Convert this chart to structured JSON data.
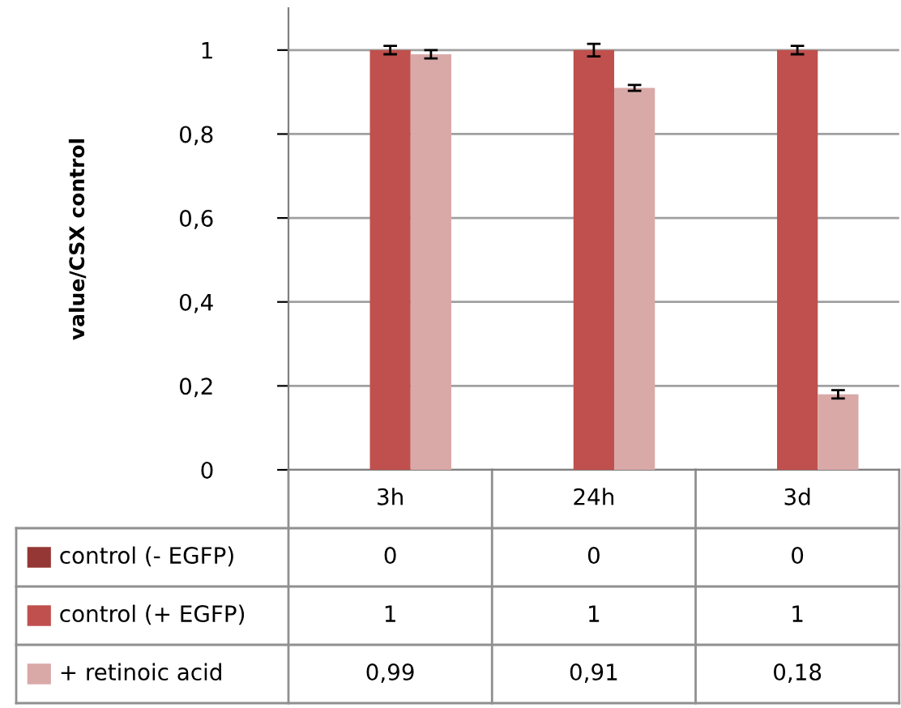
{
  "chart_data": {
    "type": "bar",
    "ylabel": "value/CSX control",
    "categories": [
      "3h",
      "24h",
      "3d"
    ],
    "series": [
      {
        "name": "control (- EGFP)",
        "color": "#953735",
        "values": [
          0,
          0,
          0
        ],
        "value_labels": [
          "0",
          "0",
          "0"
        ]
      },
      {
        "name": "control (+ EGFP)",
        "color": "#c0504d",
        "values": [
          1,
          1,
          1
        ],
        "errors": [
          0.01,
          0.015,
          0.01
        ],
        "value_labels": [
          "1",
          "1",
          "1"
        ]
      },
      {
        "name": "+ retinoic acid",
        "color": "#d9a9a8",
        "values": [
          0.99,
          0.91,
          0.18
        ],
        "errors": [
          0.01,
          0.007,
          0.01
        ],
        "value_labels": [
          "0,99",
          "0,91",
          "0,18"
        ]
      }
    ],
    "ylim": [
      0,
      1.1
    ],
    "yticks": [
      0,
      {
        "value": 0.2,
        "label": "0,2"
      },
      {
        "value": 0.4,
        "label": "0,4"
      },
      {
        "value": 0.6,
        "label": "0,6"
      },
      {
        "value": 0.8,
        "label": "0,8"
      },
      1
    ],
    "grid": "y",
    "legend": "bottom"
  }
}
